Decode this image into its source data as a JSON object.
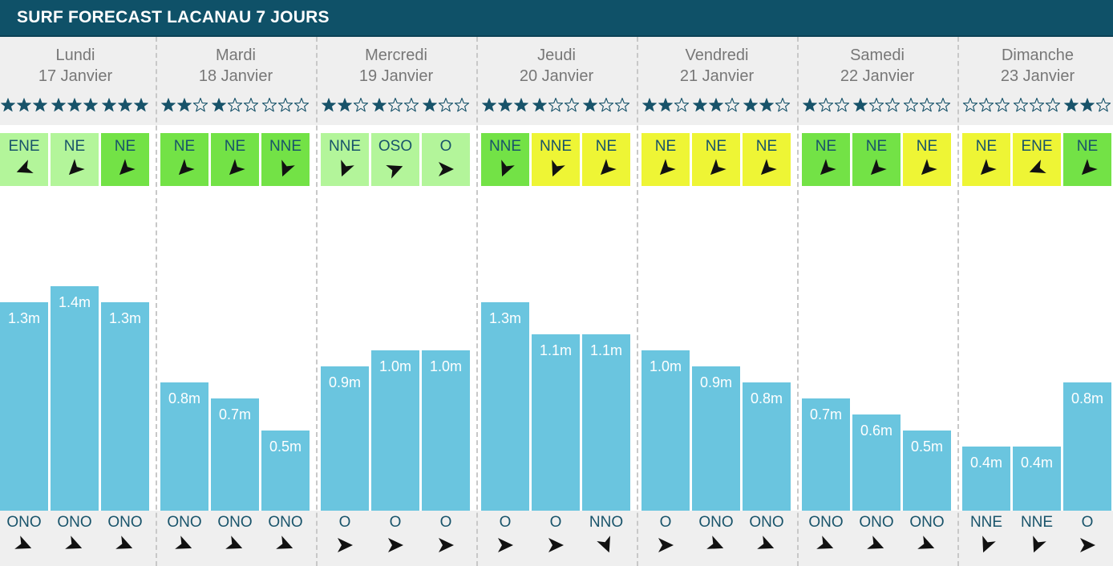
{
  "title": "SURF FORECAST LACANAU 7 JOURS",
  "colors": {
    "header_bg": "#0f5168",
    "band_bg": "#efefef",
    "bar": "#6ac5df",
    "star": "#18536a",
    "wind_light_green": "#b3f59a",
    "wind_green": "#73e246",
    "wind_yellow": "#eef535",
    "text_dir": "#18536a"
  },
  "chart_data": {
    "type": "bar",
    "title": "SURF FORECAST LACANAU 7 JOURS",
    "ylim": [
      0,
      1.6
    ],
    "days": [
      {
        "name": "Lundi",
        "date": "17 Janvier",
        "slots": [
          {
            "stars": 3,
            "wind_dir": "ENE",
            "wind_deg": 248,
            "wind_level": "light",
            "height": 1.3,
            "label": "1.3m",
            "swell_dir": "ONO",
            "swell_deg": 113
          },
          {
            "stars": 3,
            "wind_dir": "NE",
            "wind_deg": 225,
            "wind_level": "light",
            "height": 1.4,
            "label": "1.4m",
            "swell_dir": "ONO",
            "swell_deg": 113
          },
          {
            "stars": 3,
            "wind_dir": "NE",
            "wind_deg": 225,
            "wind_level": "green",
            "height": 1.3,
            "label": "1.3m",
            "swell_dir": "ONO",
            "swell_deg": 113
          }
        ]
      },
      {
        "name": "Mardi",
        "date": "18 Janvier",
        "slots": [
          {
            "stars": 2,
            "wind_dir": "NE",
            "wind_deg": 225,
            "wind_level": "green",
            "height": 0.8,
            "label": "0.8m",
            "swell_dir": "ONO",
            "swell_deg": 113
          },
          {
            "stars": 1,
            "wind_dir": "NE",
            "wind_deg": 225,
            "wind_level": "green",
            "height": 0.7,
            "label": "0.7m",
            "swell_dir": "ONO",
            "swell_deg": 113
          },
          {
            "stars": 0,
            "wind_dir": "NNE",
            "wind_deg": 203,
            "wind_level": "green",
            "height": 0.5,
            "label": "0.5m",
            "swell_dir": "ONO",
            "swell_deg": 113
          }
        ]
      },
      {
        "name": "Mercredi",
        "date": "19 Janvier",
        "slots": [
          {
            "stars": 2,
            "wind_dir": "NNE",
            "wind_deg": 203,
            "wind_level": "light",
            "height": 0.9,
            "label": "0.9m",
            "swell_dir": "O",
            "swell_deg": 90
          },
          {
            "stars": 1,
            "wind_dir": "OSO",
            "wind_deg": 68,
            "wind_level": "light",
            "height": 1.0,
            "label": "1.0m",
            "swell_dir": "O",
            "swell_deg": 90
          },
          {
            "stars": 1,
            "wind_dir": "O",
            "wind_deg": 90,
            "wind_level": "light",
            "height": 1.0,
            "label": "1.0m",
            "swell_dir": "O",
            "swell_deg": 90
          }
        ]
      },
      {
        "name": "Jeudi",
        "date": "20 Janvier",
        "slots": [
          {
            "stars": 3,
            "wind_dir": "NNE",
            "wind_deg": 203,
            "wind_level": "green",
            "height": 1.3,
            "label": "1.3m",
            "swell_dir": "O",
            "swell_deg": 90
          },
          {
            "stars": 1,
            "wind_dir": "NNE",
            "wind_deg": 203,
            "wind_level": "yellow",
            "height": 1.1,
            "label": "1.1m",
            "swell_dir": "O",
            "swell_deg": 90
          },
          {
            "stars": 1,
            "wind_dir": "NE",
            "wind_deg": 225,
            "wind_level": "yellow",
            "height": 1.1,
            "label": "1.1m",
            "swell_dir": "NNO",
            "swell_deg": 158
          }
        ]
      },
      {
        "name": "Vendredi",
        "date": "21 Janvier",
        "slots": [
          {
            "stars": 2,
            "wind_dir": "NE",
            "wind_deg": 225,
            "wind_level": "yellow",
            "height": 1.0,
            "label": "1.0m",
            "swell_dir": "O",
            "swell_deg": 90
          },
          {
            "stars": 2,
            "wind_dir": "NE",
            "wind_deg": 225,
            "wind_level": "yellow",
            "height": 0.9,
            "label": "0.9m",
            "swell_dir": "ONO",
            "swell_deg": 113
          },
          {
            "stars": 2,
            "wind_dir": "NE",
            "wind_deg": 225,
            "wind_level": "yellow",
            "height": 0.8,
            "label": "0.8m",
            "swell_dir": "ONO",
            "swell_deg": 113
          }
        ]
      },
      {
        "name": "Samedi",
        "date": "22 Janvier",
        "slots": [
          {
            "stars": 1,
            "wind_dir": "NE",
            "wind_deg": 225,
            "wind_level": "green",
            "height": 0.7,
            "label": "0.7m",
            "swell_dir": "ONO",
            "swell_deg": 113
          },
          {
            "stars": 1,
            "wind_dir": "NE",
            "wind_deg": 225,
            "wind_level": "green",
            "height": 0.6,
            "label": "0.6m",
            "swell_dir": "ONO",
            "swell_deg": 113
          },
          {
            "stars": 0,
            "wind_dir": "NE",
            "wind_deg": 225,
            "wind_level": "yellow",
            "height": 0.5,
            "label": "0.5m",
            "swell_dir": "ONO",
            "swell_deg": 113
          }
        ]
      },
      {
        "name": "Dimanche",
        "date": "23 Janvier",
        "slots": [
          {
            "stars": 0,
            "wind_dir": "NE",
            "wind_deg": 225,
            "wind_level": "yellow",
            "height": 0.4,
            "label": "0.4m",
            "swell_dir": "NNE",
            "swell_deg": 203
          },
          {
            "stars": 0,
            "wind_dir": "ENE",
            "wind_deg": 248,
            "wind_level": "yellow",
            "height": 0.4,
            "label": "0.4m",
            "swell_dir": "NNE",
            "swell_deg": 203
          },
          {
            "stars": 2,
            "wind_dir": "NE",
            "wind_deg": 225,
            "wind_level": "green",
            "height": 0.8,
            "label": "0.8m",
            "swell_dir": "O",
            "swell_deg": 90
          }
        ]
      }
    ]
  }
}
